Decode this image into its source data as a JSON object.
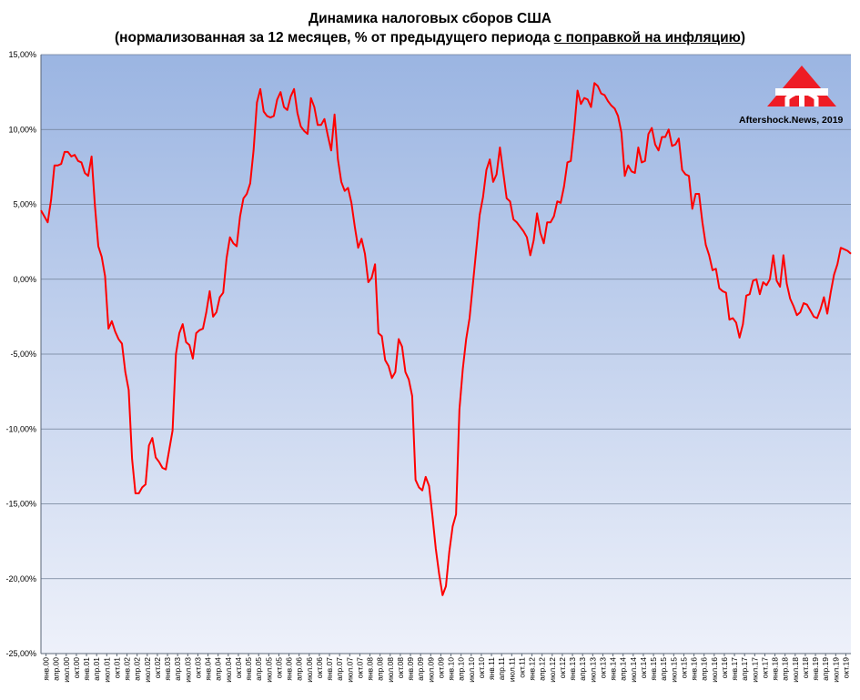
{
  "chart_data": {
    "type": "line",
    "title": "Динамика налоговых сборов США",
    "subtitle_prefix": "(нормализованная за 12 месяцев, % от предыдущего периода ",
    "subtitle_underlined": "с поправкой на инфляцию",
    "subtitle_suffix": ")",
    "watermark_text": "Aftershock.News, 2019",
    "ylim": [
      -25,
      15
    ],
    "yticks": [
      15,
      10,
      5,
      0,
      -5,
      -10,
      -15,
      -20,
      -25
    ],
    "ytick_labels": [
      "15,00%",
      "10,00%",
      "5,00%",
      "0,00%",
      "-5,00%",
      "-10,00%",
      "-15,00%",
      "-20,00%",
      "-25,00%"
    ],
    "x_labels": [
      "янв.00",
      "апр.00",
      "июл.00",
      "окт.00",
      "янв.01",
      "апр.01",
      "июл.01",
      "окт.01",
      "янв.02",
      "апр.02",
      "июл.02",
      "окт.02",
      "янв.03",
      "апр.03",
      "июл.03",
      "окт.03",
      "янв.04",
      "апр.04",
      "июл.04",
      "окт.04",
      "янв.05",
      "апр.05",
      "июл.05",
      "окт.05",
      "янв.06",
      "апр.06",
      "июл.06",
      "окт.06",
      "янв.07",
      "апр.07",
      "июл.07",
      "окт.07",
      "янв.08",
      "апр.08",
      "июл.08",
      "окт.08",
      "янв.09",
      "апр.09",
      "июл.09",
      "окт.09",
      "янв.10",
      "апр.10",
      "июл.10",
      "окт.10",
      "янв.11",
      "апр.11",
      "июл.11",
      "окт.11",
      "янв.12",
      "апр.12",
      "июл.12",
      "окт.12",
      "янв.13",
      "апр.13",
      "июл.13",
      "окт.13",
      "янв.14",
      "апр.14",
      "июл.14",
      "окт.14",
      "янв.15",
      "апр.15",
      "июл.15",
      "окт.15",
      "янв.16",
      "апр.16",
      "июл.16",
      "окт.16",
      "янв.17",
      "апр.17",
      "июл.17",
      "окт.17",
      "янв.18",
      "апр.18",
      "июл.18",
      "окт.18",
      "янв.19",
      "апр.19",
      "июл.19",
      "окт.19"
    ],
    "grid": true,
    "series": [
      {
        "color": "#ff0000",
        "values": [
          4.6,
          4.2,
          3.8,
          5.3,
          7.6,
          7.6,
          7.7,
          8.5,
          8.5,
          8.2,
          8.3,
          7.9,
          7.8,
          7.1,
          6.9,
          8.2,
          4.9,
          2.2,
          1.5,
          0.2,
          -3.3,
          -2.8,
          -3.5,
          -4.0,
          -4.3,
          -6.2,
          -7.4,
          -12.0,
          -14.3,
          -14.3,
          -13.9,
          -13.7,
          -11.1,
          -10.6,
          -11.9,
          -12.2,
          -12.6,
          -12.7,
          -11.4,
          -10.1,
          -5.0,
          -3.6,
          -3.0,
          -4.2,
          -4.4,
          -5.3,
          -3.6,
          -3.4,
          -3.3,
          -2.2,
          -0.8,
          -2.5,
          -2.2,
          -1.2,
          -0.9,
          1.4,
          2.8,
          2.4,
          2.2,
          4.2,
          5.4,
          5.7,
          6.4,
          8.6,
          11.8,
          12.7,
          11.2,
          10.9,
          10.8,
          10.9,
          12.0,
          12.5,
          11.5,
          11.3,
          12.2,
          12.7,
          11.1,
          10.2,
          9.9,
          9.7,
          12.1,
          11.5,
          10.3,
          10.3,
          10.7,
          9.6,
          8.6,
          11.0,
          8.0,
          6.5,
          5.9,
          6.1,
          5.1,
          3.5,
          2.1,
          2.7,
          1.7,
          -0.2,
          0.1,
          1.0,
          -3.6,
          -3.8,
          -5.4,
          -5.8,
          -6.6,
          -6.2,
          -4.0,
          -4.5,
          -6.2,
          -6.7,
          -7.8,
          -13.4,
          -13.9,
          -14.1,
          -13.2,
          -13.8,
          -15.8,
          -18.0,
          -19.7,
          -21.1,
          -20.5,
          -18.2,
          -16.5,
          -15.7,
          -8.7,
          -6.0,
          -4.0,
          -2.6,
          -0.3,
          2.0,
          4.3,
          5.5,
          7.3,
          8.0,
          6.5,
          7.0,
          8.8,
          7.1,
          5.4,
          5.2,
          4.0,
          3.8,
          3.5,
          3.2,
          2.8,
          1.6,
          2.6,
          4.4,
          3.1,
          2.4,
          3.8,
          3.8,
          4.2,
          5.2,
          5.1,
          6.2,
          7.8,
          7.9,
          10.0,
          12.6,
          11.7,
          12.1,
          12.0,
          11.5,
          13.1,
          12.9,
          12.4,
          12.3,
          11.9,
          11.6,
          11.4,
          10.9,
          9.8,
          6.9,
          7.6,
          7.2,
          7.1,
          8.8,
          7.8,
          7.9,
          9.7,
          10.1,
          9.0,
          8.6,
          9.5,
          9.5,
          10.0,
          8.9,
          9.0,
          9.4,
          7.3,
          7.0,
          6.9,
          4.7,
          5.7,
          5.7,
          3.8,
          2.3,
          1.6,
          0.6,
          0.7,
          -0.6,
          -0.8,
          -0.9,
          -2.7,
          -2.6,
          -2.9,
          -3.9,
          -3.0,
          -1.1,
          -1.0,
          -0.1,
          0.0,
          -1.0,
          -0.2,
          -0.4,
          0.0,
          1.6,
          -0.1,
          -0.5,
          1.6,
          -0.3,
          -1.3,
          -1.8,
          -2.4,
          -2.2,
          -1.6,
          -1.7,
          -2.1,
          -2.5,
          -2.6,
          -2.0,
          -1.2,
          -2.3,
          -0.9,
          0.3,
          1.0,
          2.1,
          2.0,
          1.9,
          1.7
        ]
      }
    ]
  }
}
